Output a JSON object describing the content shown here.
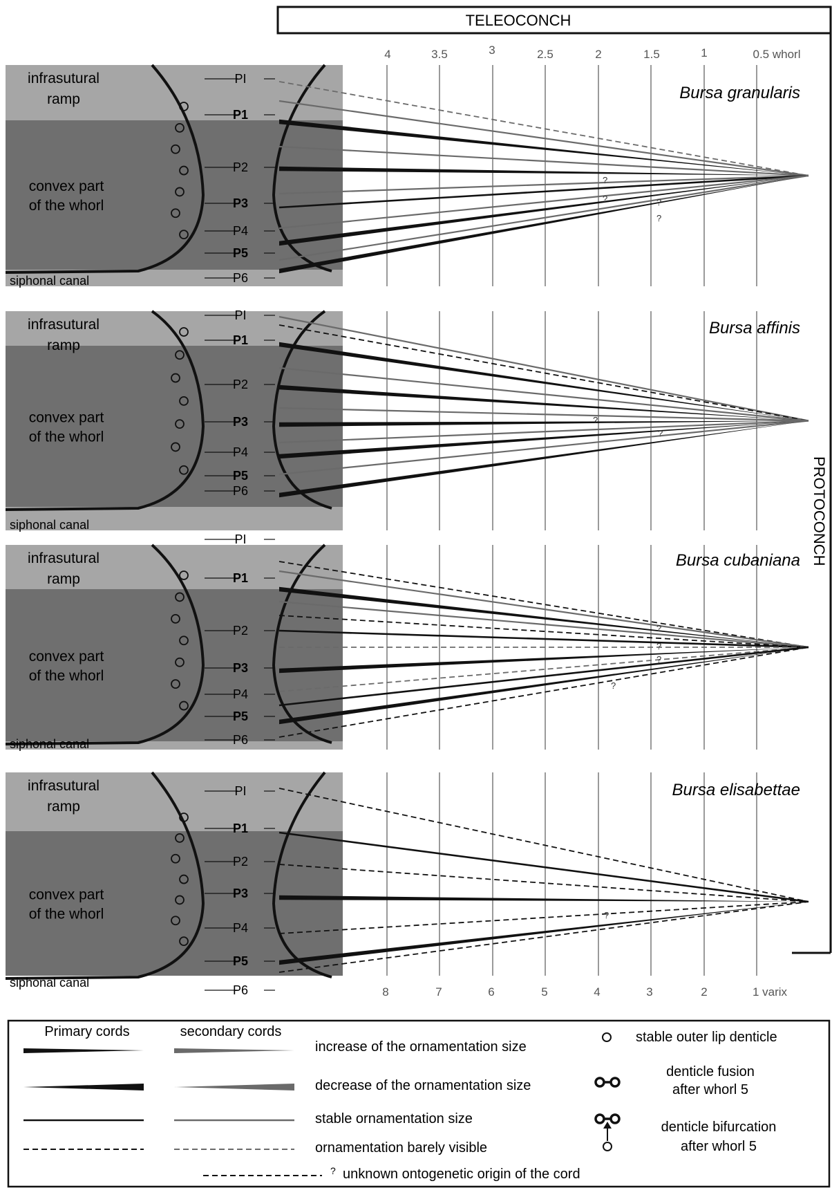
{
  "header": {
    "teleoconch": "TELEOCONCH",
    "protoconch": "PROTOCONCH"
  },
  "whorl_axis": [
    "4",
    "3.5",
    "3",
    "2.5",
    "2",
    "1.5",
    "1",
    "0.5 whorl"
  ],
  "varix_axis": [
    "8",
    "7",
    "6",
    "5",
    "4",
    "3",
    "2",
    "1 varix"
  ],
  "region_labels": {
    "ramp": [
      "infrasutural",
      "ramp"
    ],
    "convex": [
      "convex part",
      "of the whorl"
    ],
    "canal": "siphonal canal"
  },
  "cord_labels": {
    "PI": "PI",
    "P1": "P1",
    "P2": "P2",
    "P3": "P3",
    "P4": "P4",
    "P5": "P5",
    "P6": "P6"
  },
  "question_mark": "?",
  "panels": [
    {
      "species": "Bursa granularis"
    },
    {
      "species": "Bursa affinis"
    },
    {
      "species": "Bursa cubaniana"
    },
    {
      "species": "Bursa elisabettae"
    }
  ],
  "legend": {
    "primary_title": "Primary cords",
    "secondary_title": "secondary cords",
    "increase": "increase of the ornamentation size",
    "decrease": "decrease of the ornamentation size",
    "stable": "stable ornamentation size",
    "barely": "ornamentation barely visible",
    "unknown": "unknown ontogenetic origin of the cord",
    "stable_denticle": "stable outer lip denticle",
    "fusion": [
      "denticle fusion",
      "after whorl 5"
    ],
    "bifurcation": [
      "denticle bifurcation",
      "after whorl 5"
    ]
  },
  "colors": {
    "ramp_fill": "#a6a6a6",
    "convex_fill": "#6f6f6f",
    "primary_cord": "#111111",
    "secondary_cord": "#6a6a6a",
    "grid_line": "#9a9a9a"
  }
}
